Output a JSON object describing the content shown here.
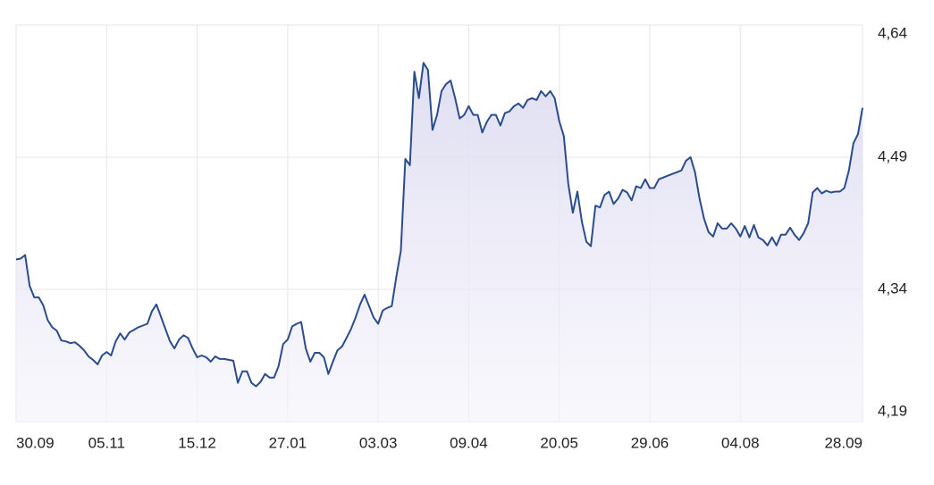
{
  "chart_data": {
    "type": "line",
    "categories": [
      "30.09",
      null,
      null,
      null,
      null,
      null,
      null,
      null,
      null,
      null,
      null,
      null,
      null,
      null,
      null,
      null,
      null,
      null,
      null,
      null,
      "05.11",
      null,
      null,
      null,
      null,
      null,
      null,
      null,
      null,
      null,
      null,
      null,
      null,
      null,
      null,
      null,
      null,
      null,
      null,
      null,
      "15.12",
      null,
      null,
      null,
      null,
      null,
      null,
      null,
      null,
      null,
      null,
      null,
      null,
      null,
      null,
      null,
      null,
      null,
      null,
      null,
      "27.01",
      null,
      null,
      null,
      null,
      null,
      null,
      null,
      null,
      null,
      null,
      null,
      null,
      null,
      null,
      null,
      null,
      null,
      null,
      null,
      "03.03",
      null,
      null,
      null,
      null,
      null,
      null,
      null,
      null,
      null,
      null,
      null,
      null,
      null,
      null,
      null,
      null,
      null,
      null,
      null,
      "09.04",
      null,
      null,
      null,
      null,
      null,
      null,
      null,
      null,
      null,
      null,
      null,
      null,
      null,
      null,
      null,
      null,
      null,
      null,
      null,
      "20.05",
      null,
      null,
      null,
      null,
      null,
      null,
      null,
      null,
      null,
      null,
      null,
      null,
      null,
      null,
      null,
      null,
      null,
      null,
      null,
      "29.06",
      null,
      null,
      null,
      null,
      null,
      null,
      null,
      null,
      null,
      null,
      null,
      null,
      null,
      null,
      null,
      null,
      null,
      null,
      null,
      "04.08",
      null,
      null,
      null,
      null,
      null,
      null,
      null,
      null,
      null,
      null,
      null,
      null,
      null,
      null,
      null,
      null,
      null,
      null,
      null,
      null,
      null,
      null,
      null,
      null,
      null,
      null,
      "28.09"
    ],
    "values": [
      4.374,
      4.375,
      4.379,
      4.344,
      4.331,
      4.331,
      4.322,
      4.305,
      4.297,
      4.293,
      4.282,
      4.281,
      4.279,
      4.28,
      4.276,
      4.271,
      4.264,
      4.26,
      4.255,
      4.265,
      4.269,
      4.265,
      4.281,
      4.29,
      4.283,
      4.291,
      4.294,
      4.297,
      4.299,
      4.301,
      4.315,
      4.323,
      4.309,
      4.295,
      4.281,
      4.273,
      4.283,
      4.288,
      4.285,
      4.273,
      4.263,
      4.265,
      4.263,
      4.258,
      4.264,
      4.261,
      4.261,
      4.26,
      4.259,
      4.234,
      4.247,
      4.247,
      4.234,
      4.23,
      4.235,
      4.244,
      4.24,
      4.24,
      4.253,
      4.278,
      4.283,
      4.298,
      4.301,
      4.303,
      4.273,
      4.258,
      4.268,
      4.268,
      4.263,
      4.244,
      4.258,
      4.271,
      4.275,
      4.285,
      4.295,
      4.308,
      4.323,
      4.334,
      4.321,
      4.308,
      4.301,
      4.316,
      4.319,
      4.321,
      4.354,
      4.384,
      4.488,
      4.481,
      4.587,
      4.557,
      4.597,
      4.589,
      4.521,
      4.538,
      4.565,
      4.573,
      4.577,
      4.557,
      4.534,
      4.538,
      4.548,
      4.538,
      4.538,
      4.518,
      4.53,
      4.538,
      4.538,
      4.526,
      4.54,
      4.542,
      4.548,
      4.551,
      4.546,
      4.555,
      4.557,
      4.555,
      4.565,
      4.559,
      4.565,
      4.557,
      4.531,
      4.514,
      4.46,
      4.427,
      4.451,
      4.417,
      4.394,
      4.389,
      4.435,
      4.433,
      4.447,
      4.451,
      4.437,
      4.443,
      4.453,
      4.45,
      4.441,
      4.457,
      4.455,
      4.465,
      4.455,
      4.455,
      4.465,
      4.467,
      4.469,
      4.471,
      4.473,
      4.475,
      4.486,
      4.49,
      4.473,
      4.443,
      4.42,
      4.405,
      4.4,
      4.415,
      4.409,
      4.409,
      4.415,
      4.409,
      4.4,
      4.412,
      4.399,
      4.413,
      4.399,
      4.396,
      4.39,
      4.399,
      4.39,
      4.402,
      4.402,
      4.41,
      4.402,
      4.396,
      4.404,
      4.415,
      4.45,
      4.455,
      4.449,
      4.452,
      4.45,
      4.451,
      4.451,
      4.455,
      4.475,
      4.506,
      4.516,
      4.546
    ],
    "color": "#2b4c8c",
    "ylim": [
      4.19,
      4.64
    ],
    "yticks": [
      {
        "value": 4.19,
        "label": "4,19"
      },
      {
        "value": 4.34,
        "label": "4,34"
      },
      {
        "value": 4.49,
        "label": "4,49"
      },
      {
        "value": 4.64,
        "label": "4,64"
      }
    ],
    "grid": true
  }
}
